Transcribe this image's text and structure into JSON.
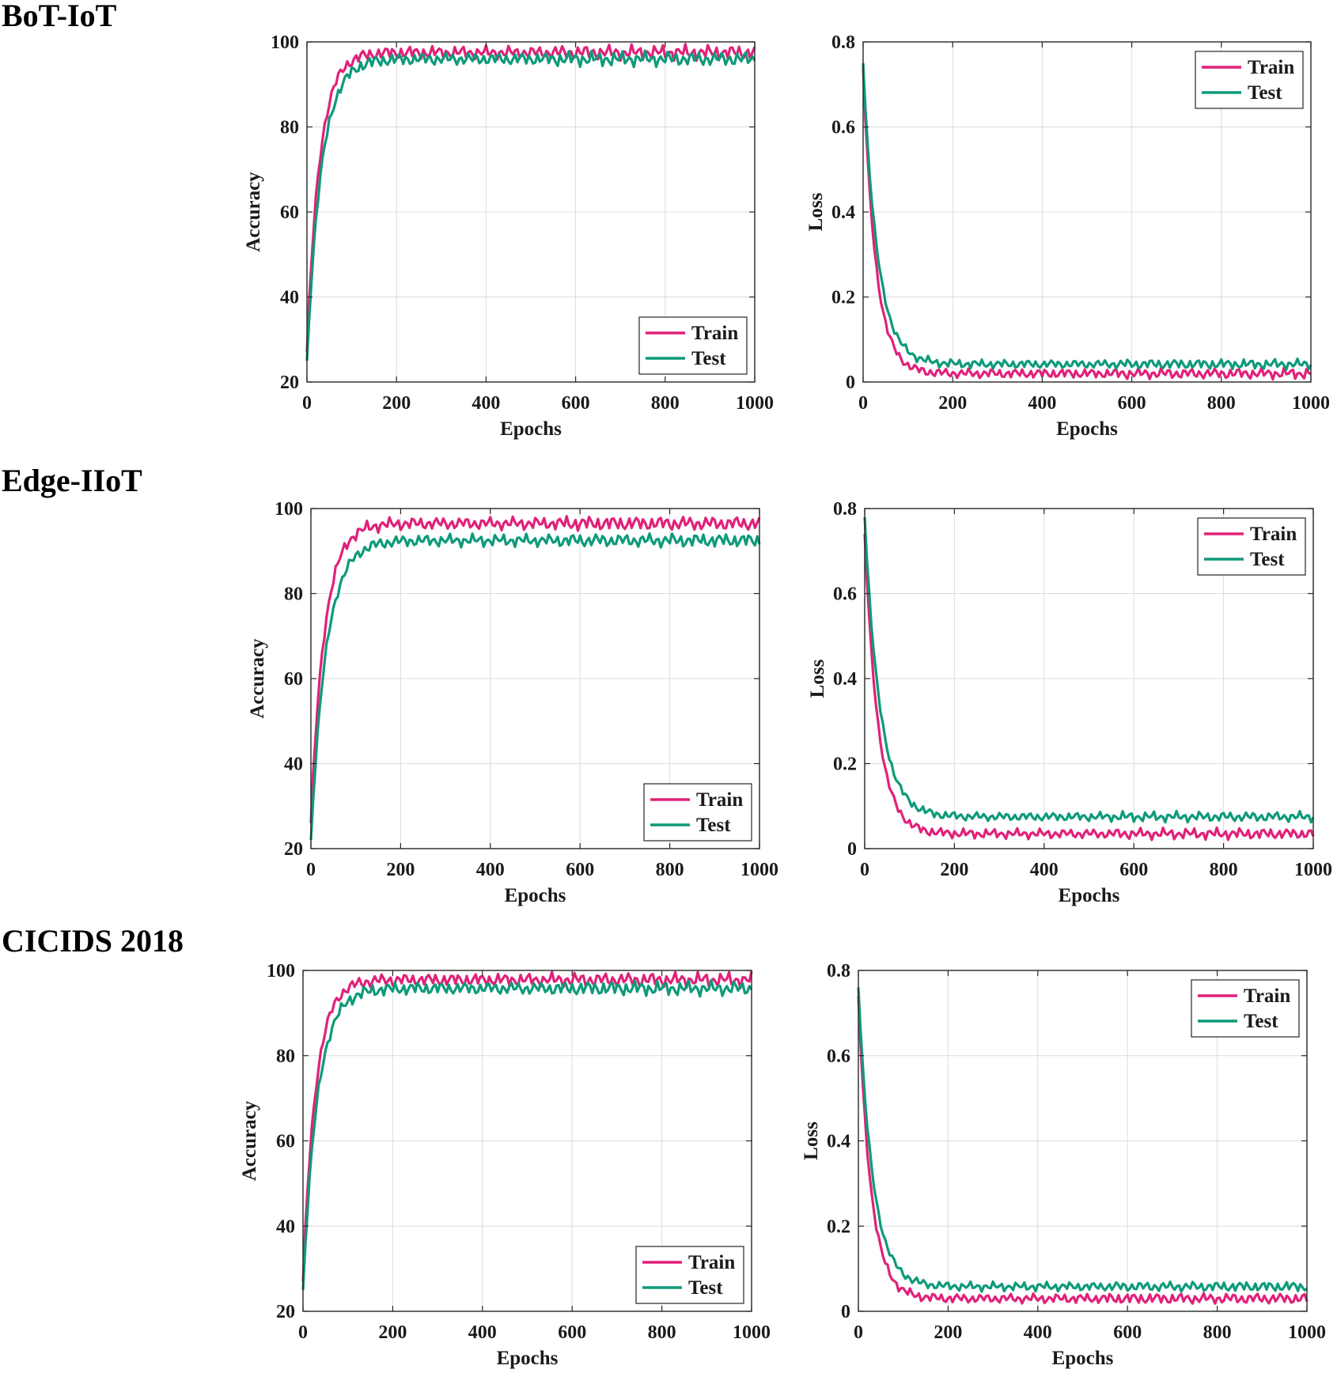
{
  "sections": [
    {
      "title": "BoT-IoT"
    },
    {
      "title": "Edge-IIoT"
    },
    {
      "title": "CICIDS 2018"
    }
  ],
  "colors": {
    "train": "#E0217A",
    "test": "#0E9A7A",
    "grid": "#dcdcdc",
    "axis": "#262626"
  },
  "chart_data": [
    {
      "section": "BoT-IoT",
      "metric": "accuracy",
      "type": "line",
      "title": "",
      "xlabel": "Epochs",
      "ylabel": "Accuracy",
      "xlim": [
        0,
        1000
      ],
      "ylim": [
        20,
        100
      ],
      "xticks": [
        0,
        200,
        400,
        600,
        800,
        1000
      ],
      "yticks": [
        20,
        40,
        60,
        80,
        100
      ],
      "ytick_labels": [
        "20",
        "40",
        "60",
        "80",
        "100"
      ],
      "grid": true,
      "legend": "bottom-right",
      "series": [
        {
          "name": "Train",
          "color": "#E0217A",
          "start": 27,
          "plateau": 97.5,
          "rise": 28,
          "amp": 1.6
        },
        {
          "name": "Test",
          "color": "#0E9A7A",
          "start": 25,
          "plateau": 96,
          "rise": 32,
          "amp": 1.6
        }
      ]
    },
    {
      "section": "BoT-IoT",
      "metric": "loss",
      "type": "line",
      "title": "",
      "xlabel": "Epochs",
      "ylabel": "Loss",
      "xlim": [
        0,
        1000
      ],
      "ylim": [
        0,
        0.8
      ],
      "xticks": [
        0,
        200,
        400,
        600,
        800,
        1000
      ],
      "yticks": [
        0,
        0.2,
        0.4,
        0.6,
        0.8
      ],
      "ytick_labels": [
        "0",
        "0.2",
        "0.4",
        "0.6",
        "0.8"
      ],
      "grid": true,
      "legend": "top-right",
      "series": [
        {
          "name": "Train",
          "color": "#E0217A",
          "start": 0.74,
          "plateau": 0.02,
          "rise": 28,
          "amp": 0.012
        },
        {
          "name": "Test",
          "color": "#0E9A7A",
          "start": 0.75,
          "plateau": 0.042,
          "rise": 32,
          "amp": 0.011
        }
      ]
    },
    {
      "section": "Edge-IIoT",
      "metric": "accuracy",
      "type": "line",
      "title": "",
      "xlabel": "Epochs",
      "ylabel": "Accuracy",
      "xlim": [
        0,
        1000
      ],
      "ylim": [
        20,
        100
      ],
      "xticks": [
        0,
        200,
        400,
        600,
        800,
        1000
      ],
      "yticks": [
        20,
        40,
        60,
        80,
        100
      ],
      "ytick_labels": [
        "20",
        "40",
        "60",
        "80",
        "100"
      ],
      "grid": true,
      "legend": "bottom-right",
      "series": [
        {
          "name": "Train",
          "color": "#E0217A",
          "start": 26,
          "plateau": 96.5,
          "rise": 30,
          "amp": 1.6
        },
        {
          "name": "Test",
          "color": "#0E9A7A",
          "start": 22,
          "plateau": 92.5,
          "rise": 34,
          "amp": 1.5
        }
      ]
    },
    {
      "section": "Edge-IIoT",
      "metric": "loss",
      "type": "line",
      "title": "",
      "xlabel": "Epochs",
      "ylabel": "Loss",
      "xlim": [
        0,
        1000
      ],
      "ylim": [
        0,
        0.8
      ],
      "xticks": [
        0,
        200,
        400,
        600,
        800,
        1000
      ],
      "yticks": [
        0,
        0.2,
        0.4,
        0.6,
        0.8
      ],
      "ytick_labels": [
        "0",
        "0.2",
        "0.4",
        "0.6",
        "0.8"
      ],
      "grid": true,
      "legend": "top-right",
      "series": [
        {
          "name": "Train",
          "color": "#E0217A",
          "start": 0.74,
          "plateau": 0.035,
          "rise": 30,
          "amp": 0.012
        },
        {
          "name": "Test",
          "color": "#0E9A7A",
          "start": 0.78,
          "plateau": 0.075,
          "rise": 34,
          "amp": 0.011
        }
      ]
    },
    {
      "section": "CICIDS 2018",
      "metric": "accuracy",
      "type": "line",
      "title": "",
      "xlabel": "Epochs",
      "ylabel": "Accuracy",
      "xlim": [
        0,
        1000
      ],
      "ylim": [
        20,
        100
      ],
      "xticks": [
        0,
        200,
        400,
        600,
        800,
        1000
      ],
      "yticks": [
        20,
        40,
        60,
        80,
        100
      ],
      "ytick_labels": [
        "20",
        "40",
        "60",
        "80",
        "100"
      ],
      "grid": true,
      "legend": "bottom-right",
      "series": [
        {
          "name": "Train",
          "color": "#E0217A",
          "start": 27,
          "plateau": 97.8,
          "rise": 28,
          "amp": 1.6
        },
        {
          "name": "Test",
          "color": "#0E9A7A",
          "start": 25,
          "plateau": 95.8,
          "rise": 32,
          "amp": 1.6
        }
      ]
    },
    {
      "section": "CICIDS 2018",
      "metric": "loss",
      "type": "line",
      "title": "",
      "xlabel": "Epochs",
      "ylabel": "Loss",
      "xlim": [
        0,
        1000
      ],
      "ylim": [
        0,
        0.8
      ],
      "xticks": [
        0,
        200,
        400,
        600,
        800,
        1000
      ],
      "yticks": [
        0,
        0.2,
        0.4,
        0.6,
        0.8
      ],
      "ytick_labels": [
        "0",
        "0.2",
        "0.4",
        "0.6",
        "0.8"
      ],
      "grid": true,
      "legend": "top-right",
      "series": [
        {
          "name": "Train",
          "color": "#E0217A",
          "start": 0.74,
          "plateau": 0.03,
          "rise": 28,
          "amp": 0.012
        },
        {
          "name": "Test",
          "color": "#0E9A7A",
          "start": 0.76,
          "plateau": 0.058,
          "rise": 32,
          "amp": 0.011
        }
      ]
    }
  ]
}
